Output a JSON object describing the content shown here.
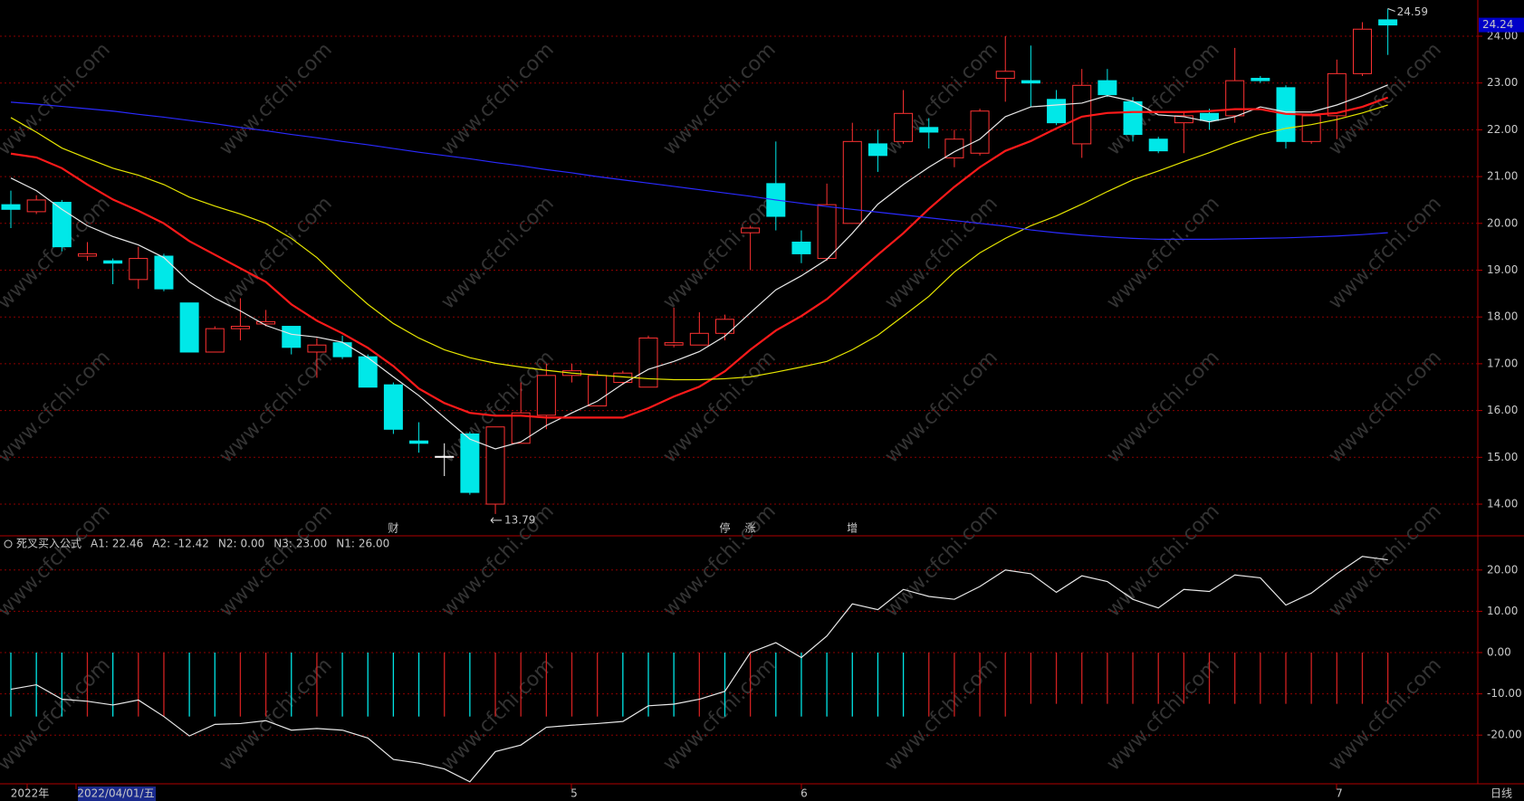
{
  "chart_data": [
    {
      "type": "candlestick",
      "up_color": "#ff3232",
      "down_color": "#00e8e8",
      "flat_color": "#ffffff",
      "open": [
        20.4,
        20.25,
        20.45,
        19.3,
        19.2,
        18.8,
        19.3,
        18.3,
        17.25,
        17.75,
        17.85,
        17.8,
        17.25,
        17.45,
        17.15,
        16.55,
        15.35,
        15.02,
        15.5,
        14.0,
        15.3,
        15.9,
        16.75,
        16.1,
        16.6,
        16.5,
        17.4,
        17.4,
        17.65,
        19.8,
        20.85,
        19.6,
        19.25,
        20.0,
        21.7,
        21.75,
        22.05,
        21.4,
        21.5,
        23.1,
        23.05,
        22.65,
        21.7,
        23.05,
        22.6,
        21.8,
        22.15,
        22.35,
        22.3,
        23.1,
        22.9,
        21.75,
        22.3,
        23.2,
        24.35
      ],
      "high": [
        20.7,
        20.6,
        20.5,
        19.6,
        19.25,
        19.5,
        19.35,
        18.3,
        17.8,
        18.4,
        18.15,
        17.8,
        17.55,
        17.6,
        17.2,
        16.6,
        15.75,
        15.3,
        15.55,
        15.65,
        16.6,
        17.0,
        17.0,
        16.85,
        16.85,
        17.6,
        18.2,
        18.1,
        18.05,
        19.95,
        21.75,
        19.85,
        20.85,
        22.15,
        22.0,
        22.85,
        22.25,
        22.0,
        22.45,
        24.0,
        23.8,
        22.85,
        23.3,
        23.3,
        22.7,
        21.85,
        22.4,
        22.45,
        23.75,
        23.15,
        22.95,
        22.35,
        23.5,
        24.3,
        24.59
      ],
      "low": [
        19.9,
        20.2,
        19.4,
        19.2,
        18.7,
        18.6,
        18.55,
        17.25,
        17.25,
        17.5,
        17.8,
        17.2,
        16.7,
        17.1,
        16.5,
        15.5,
        15.1,
        14.6,
        14.2,
        13.79,
        15.3,
        15.6,
        16.6,
        16.1,
        16.55,
        16.5,
        17.35,
        17.4,
        17.5,
        19.0,
        19.85,
        19.15,
        19.2,
        20.0,
        21.1,
        21.7,
        21.6,
        21.2,
        21.45,
        22.6,
        22.5,
        22.1,
        21.4,
        22.7,
        21.75,
        21.5,
        21.5,
        22.0,
        22.15,
        23.0,
        21.6,
        21.7,
        21.8,
        23.15,
        23.6
      ],
      "close": [
        20.3,
        20.5,
        19.5,
        19.35,
        19.15,
        19.25,
        18.6,
        17.25,
        17.75,
        17.8,
        17.9,
        17.35,
        17.4,
        17.15,
        16.5,
        15.6,
        15.3,
        15.02,
        14.25,
        15.65,
        15.95,
        16.75,
        16.85,
        16.75,
        16.8,
        17.55,
        17.45,
        17.65,
        17.95,
        19.9,
        20.15,
        19.35,
        20.4,
        21.75,
        21.45,
        22.35,
        21.95,
        21.8,
        22.4,
        23.25,
        23.0,
        22.15,
        22.95,
        22.75,
        21.9,
        21.55,
        22.3,
        22.2,
        23.05,
        23.05,
        21.75,
        22.3,
        23.2,
        24.15,
        24.24
      ],
      "series": [
        {
          "color": "#e8e8e8",
          "values": [
            20.97,
            20.7,
            20.3,
            19.95,
            19.72,
            19.54,
            19.27,
            18.75,
            18.4,
            18.13,
            17.82,
            17.63,
            17.57,
            17.46,
            17.13,
            16.72,
            16.32,
            15.85,
            15.39,
            15.18,
            15.33,
            15.68,
            15.95,
            16.2,
            16.57,
            16.88,
            17.05,
            17.26,
            17.59,
            18.09,
            18.58,
            18.88,
            19.23,
            19.79,
            20.41,
            20.83,
            21.2,
            21.53,
            21.8,
            22.28,
            22.49,
            22.53,
            22.57,
            22.73,
            22.61,
            22.32,
            22.28,
            22.17,
            22.28,
            22.49,
            22.38,
            22.38,
            22.53,
            22.73,
            22.96
          ]
        },
        {
          "color": "#ff1a1a",
          "values": [
            21.49,
            21.41,
            21.18,
            20.83,
            20.51,
            20.27,
            20.0,
            19.62,
            19.33,
            19.04,
            18.75,
            18.27,
            17.92,
            17.65,
            17.34,
            16.95,
            16.47,
            16.16,
            15.95,
            15.89,
            15.89,
            15.85,
            15.85,
            15.85,
            15.85,
            16.05,
            16.3,
            16.51,
            16.84,
            17.3,
            17.71,
            18.02,
            18.38,
            18.85,
            19.33,
            19.79,
            20.31,
            20.78,
            21.2,
            21.55,
            21.76,
            22.03,
            22.28,
            22.36,
            22.38,
            22.38,
            22.38,
            22.4,
            22.44,
            22.44,
            22.34,
            22.32,
            22.36,
            22.49,
            22.69
          ]
        },
        {
          "color": "#e6e600",
          "values": [
            22.26,
            21.95,
            21.61,
            21.39,
            21.18,
            21.03,
            20.83,
            20.56,
            20.37,
            20.2,
            20.0,
            19.68,
            19.27,
            18.75,
            18.27,
            17.86,
            17.55,
            17.3,
            17.13,
            17.01,
            16.93,
            16.86,
            16.8,
            16.76,
            16.72,
            16.68,
            16.66,
            16.66,
            16.68,
            16.72,
            16.82,
            16.93,
            17.05,
            17.3,
            17.61,
            18.02,
            18.44,
            18.96,
            19.37,
            19.68,
            19.95,
            20.16,
            20.41,
            20.68,
            20.93,
            21.12,
            21.32,
            21.51,
            21.72,
            21.9,
            22.03,
            22.11,
            22.22,
            22.36,
            22.53
          ]
        },
        {
          "color": "#2a2aff",
          "values": [
            22.59,
            22.55,
            22.5,
            22.45,
            22.4,
            22.33,
            22.27,
            22.2,
            22.13,
            22.05,
            21.98,
            21.9,
            21.83,
            21.75,
            21.68,
            21.6,
            21.52,
            21.45,
            21.38,
            21.3,
            21.23,
            21.15,
            21.08,
            21.0,
            20.93,
            20.86,
            20.79,
            20.72,
            20.65,
            20.58,
            20.5,
            20.43,
            20.36,
            20.3,
            20.24,
            20.18,
            20.12,
            20.06,
            20.0,
            19.94,
            19.86,
            19.8,
            19.75,
            19.71,
            19.68,
            19.66,
            19.66,
            19.66,
            19.67,
            19.68,
            19.69,
            19.71,
            19.73,
            19.76,
            19.8
          ]
        }
      ],
      "ylim": [
        13.5,
        24.7
      ],
      "yticks": [
        {
          "value": 14,
          "label": "14.00"
        },
        {
          "value": 15,
          "label": "15.00"
        },
        {
          "value": 16,
          "label": "16.00"
        },
        {
          "value": 17,
          "label": "17.00"
        },
        {
          "value": 18,
          "label": "18.00"
        },
        {
          "value": 19,
          "label": "19.00"
        },
        {
          "value": 20,
          "label": "20.00"
        },
        {
          "value": 21,
          "label": "21.00"
        },
        {
          "value": 22,
          "label": "22.00"
        },
        {
          "value": 23,
          "label": "23.00"
        },
        {
          "value": 24,
          "label": "24.00"
        }
      ],
      "grid": true
    },
    {
      "type": "indicator",
      "title": "死叉买入公式",
      "series": [
        {
          "name": "A1:",
          "color": "#e8e8e8",
          "values": [
            -8.9,
            -7.8,
            -11.3,
            -11.8,
            -12.7,
            -11.5,
            -15.5,
            -20.2,
            -17.4,
            -17.2,
            -16.5,
            -18.8,
            -18.4,
            -18.8,
            -20.7,
            -25.9,
            -26.8,
            -28.2,
            -31.3,
            -24.0,
            -22.4,
            -18.1,
            -17.6,
            -17.2,
            -16.7,
            -12.9,
            -12.5,
            -11.3,
            -9.4,
            0,
            2.4,
            -1.2,
            4,
            11.8,
            10.4,
            15.3,
            13.6,
            12.9,
            16,
            20,
            19.1,
            14.6,
            18.6,
            17.2,
            12.9,
            10.8,
            15.3,
            14.8,
            18.8,
            18.1,
            11.5,
            14.4,
            19.1,
            23.3,
            22.46
          ]
        },
        {
          "name": "A2:",
          "color": "#e6e600",
          "values": [
            -15.5,
            -15.5,
            -15.5,
            -15.5,
            -15.5,
            -15.5,
            -15.5,
            -15.5,
            -15.5,
            -15.5,
            -15.5,
            -15.5,
            -15.5,
            -15.5,
            -15.5,
            -15.5,
            -15.5,
            -15.5,
            -15.5,
            -15.5,
            -15.5,
            -15.5,
            -15.5,
            -15.5,
            -15.5,
            -15.5,
            -15.5,
            -15.5,
            -15.5,
            -15.5,
            -15.5,
            -15.5,
            -15.5,
            -15.5,
            -15.5,
            -15.5,
            -15.5,
            -15.5,
            -15.5,
            -15.5,
            -12.42,
            -12.42,
            -12.42,
            -12.42,
            -12.42,
            -12.42,
            -12.42,
            -12.42,
            -12.42,
            -12.42,
            -12.42,
            -12.42,
            -12.42,
            -12.42,
            -12.42
          ],
          "bar_colors": [
            "#00e5e5",
            "#00e5e5",
            "#00e5e5",
            "#d02020",
            "#00e5e5",
            "#d02020",
            "#d02020",
            "#00e5e5",
            "#00e5e5",
            "#d02020",
            "#d02020",
            "#00e5e5",
            "#d02020",
            "#00e5e5",
            "#00e5e5",
            "#00e5e5",
            "#00e5e5",
            "#d02020",
            "#00e5e5",
            "#d02020",
            "#d02020",
            "#d02020",
            "#d02020",
            "#d02020",
            "#00e5e5",
            "#00e5e5",
            "#00e5e5",
            "#d02020",
            "#00e5e5",
            "#d02020",
            "#00e5e5",
            "#00e5e5",
            "#00e5e5",
            "#00e5e5",
            "#00e5e5",
            "#00e5e5",
            "#d02020",
            "#d02020",
            "#d02020",
            "#d02020",
            "#d02020",
            "#d02020",
            "#d02020",
            "#d02020",
            "#d02020",
            "#d02020",
            "#d02020",
            "#d02020",
            "#d02020",
            "#d02020",
            "#d02020",
            "#d02020",
            "#d02020",
            "#d02020",
            "#d02020"
          ]
        }
      ],
      "params": [
        {
          "name": "N2:",
          "color": "#e6e600",
          "value": 0,
          "label": "0.00"
        },
        {
          "name": "N3:",
          "color": "#ff40ff",
          "value": 23,
          "label": "23.00"
        },
        {
          "name": "N1:",
          "color": "#40ff40",
          "value": 26,
          "label": "26.00"
        }
      ],
      "ylim": [
        -34,
        26
      ],
      "yticks": [
        {
          "value": 20,
          "label": "20.00"
        },
        {
          "value": 10,
          "label": "10.00"
        },
        {
          "value": 0,
          "label": "0.00"
        },
        {
          "value": -10,
          "label": "-10.00"
        },
        {
          "value": -20,
          "label": "-20.00"
        }
      ]
    }
  ],
  "ui": {
    "watermark": "www.cfchi.com",
    "period": "日线",
    "events": [
      {
        "text": "财",
        "color": "#6fa8ff"
      },
      {
        "text": "停",
        "color": "#00e5e5"
      },
      {
        "text": "涨",
        "color": "#ff4040"
      },
      {
        "text": "增",
        "color": "#ff4040"
      }
    ],
    "dates": [
      "2022年",
      "2022/04/01/五",
      "5",
      "6",
      "7"
    ]
  }
}
